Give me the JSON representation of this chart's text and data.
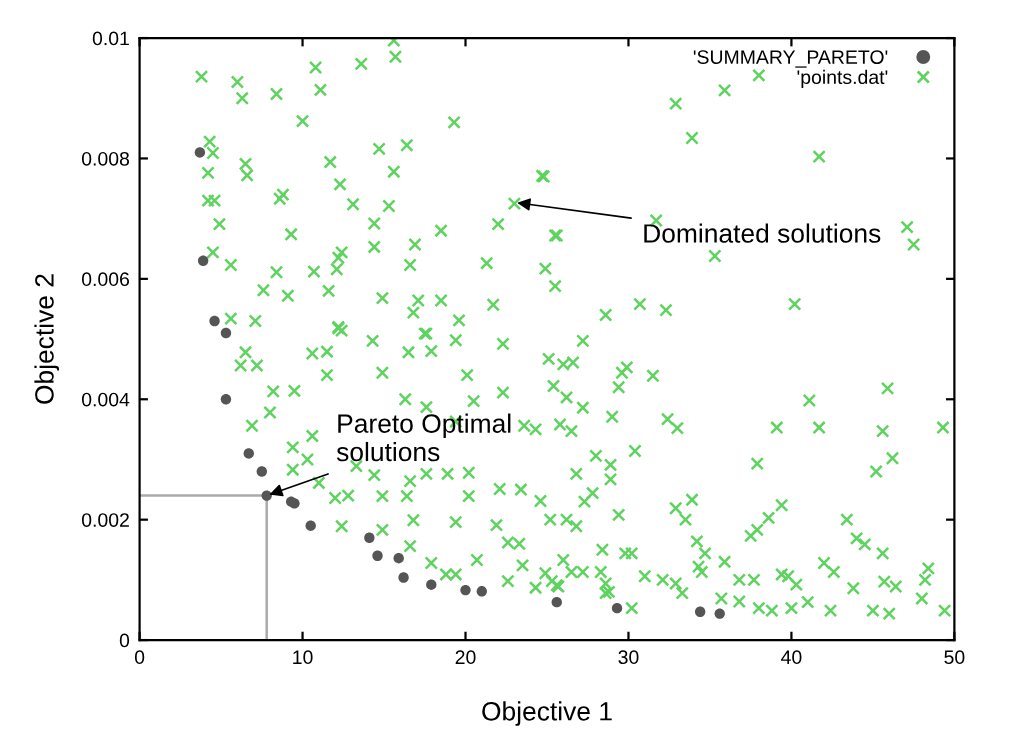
{
  "chart_data": {
    "type": "scatter",
    "xlabel": "Objective 1",
    "ylabel": "Objective 2",
    "xlim": [
      0,
      50
    ],
    "xticks": [
      0,
      10,
      20,
      30,
      40,
      50
    ],
    "ylim": [
      0,
      0.01
    ],
    "yticks": [
      0,
      0.002,
      0.004,
      0.006,
      0.008,
      0.01
    ],
    "grid": false,
    "legend": "top right",
    "series": [
      {
        "name": "'SUMMARY_PARETO'",
        "color": "#555555",
        "marker": "circle",
        "x": [
          3.7,
          3.9,
          4.6,
          5.3,
          5.3,
          6.7,
          7.5,
          7.8,
          9.3,
          9.5,
          10.5,
          14.1,
          14.6,
          15.9,
          16.2,
          17.9,
          20.0,
          21.0,
          25.6,
          29.3,
          34.4,
          35.6
        ],
        "values": [
          0.0081,
          0.0063,
          0.0053,
          0.0051,
          0.004,
          0.0031,
          0.0028,
          0.0024,
          0.0023,
          0.00227,
          0.0019,
          0.0017,
          0.0014,
          0.00136,
          0.00104,
          0.00092,
          0.00083,
          0.00081,
          0.00063,
          0.00053,
          0.00047,
          0.00044
        ]
      },
      {
        "name": "'points.dat'",
        "color": "#5fd35f",
        "marker": "cross",
        "x": [
          3.8,
          6.0,
          6.3,
          8.4,
          10.8,
          11.1,
          13.6,
          15.7,
          15.6,
          10.0,
          19.3,
          4.3,
          4.5,
          6.5,
          6.6,
          4.2,
          4.6,
          4.2,
          8.8,
          8.6,
          11.7,
          12.3,
          14.7,
          16.4,
          15.6,
          13.1,
          15.3,
          14.4,
          4.9,
          9.3,
          18.5,
          22.0,
          24.7,
          23.0,
          25.5,
          4.5,
          5.6,
          12.4,
          12.2,
          14.4,
          16.6,
          16.9,
          21.3,
          24.9,
          25.5,
          8.4,
          10.7,
          11.6,
          7.6,
          9.1,
          12.1,
          14.9,
          17.1,
          16.8,
          18.5,
          19.6,
          21.7,
          5.6,
          7.1,
          12.2,
          12.4,
          17.5,
          38.0,
          35.9,
          32.9,
          33.9,
          41.7,
          24.8,
          25.6,
          31.7,
          35.3,
          47.1,
          47.5,
          30.7,
          32.3,
          28.6,
          40.2,
          6.5,
          6.2,
          7.2,
          8.2,
          9.5,
          10.6,
          11.5,
          12.2,
          14.3,
          11.5,
          14.9,
          16.5,
          17.9,
          19.4,
          17.6,
          20.1,
          16.3,
          17.6,
          20.5,
          19.4,
          22.3,
          25.1,
          26.0,
          22.3,
          23.6,
          24.3,
          25.4,
          26.2,
          25.8,
          6.9,
          8.0,
          9.4,
          9.4,
          10.6,
          10.3,
          11.0,
          12.0,
          12.8,
          13.3,
          14.4,
          14.9,
          16.4,
          16.6,
          17.6,
          18.9,
          20.2,
          20.2,
          22.1,
          23.4,
          24.6,
          16.8,
          19.4,
          21.9,
          14.9,
          12.4,
          16.6,
          17.9,
          18.8,
          19.4,
          20.7,
          22.6,
          23.3,
          23.5,
          24.9,
          26.0,
          25.6,
          24.3,
          22.6,
          27.2,
          26.6,
          29.6,
          29.9,
          31.5,
          29.4,
          27.2,
          29.0,
          32.4,
          33.0,
          26.5,
          41.1,
          45.9,
          45.6,
          39.1,
          41.7,
          49.3,
          46.2,
          45.2,
          37.9,
          30.4,
          28.0,
          28.9,
          28.9,
          26.8,
          27.8,
          27.3,
          29.4,
          33.9,
          32.9,
          33.5,
          39.4,
          43.4,
          38.6,
          37.9,
          37.5,
          44.0,
          44.5,
          26.2,
          26.8,
          25.2,
          34.2,
          34.7,
          28.4,
          29.8,
          30.2,
          26.5,
          27.2,
          28.3,
          28.6,
          28.8,
          31.0,
          32.1,
          32.9,
          34.3,
          34.5,
          35.9,
          36.8,
          37.7,
          39.4,
          39.8,
          40.3,
          42.0,
          42.6,
          43.8,
          45.6,
          45.7,
          46.4,
          48.4,
          48.2,
          48.0,
          49.4,
          46.0,
          45.0,
          42.4,
          41.0,
          40.0,
          38.8,
          38.0,
          36.8,
          35.7,
          30.2,
          28.6,
          25.3,
          25.7,
          33.3
        ],
        "values": [
          0.00936,
          0.00927,
          0.009,
          0.00907,
          0.00951,
          0.00914,
          0.00957,
          0.00969,
          0.00996,
          0.00862,
          0.0086,
          0.00828,
          0.00809,
          0.00791,
          0.00772,
          0.00776,
          0.0073,
          0.0073,
          0.0074,
          0.00733,
          0.00794,
          0.00757,
          0.00816,
          0.00822,
          0.00778,
          0.00724,
          0.00721,
          0.00692,
          0.00691,
          0.00674,
          0.0068,
          0.00691,
          0.00771,
          0.00725,
          0.00672,
          0.00644,
          0.00623,
          0.00644,
          0.00635,
          0.00653,
          0.00623,
          0.00657,
          0.00626,
          0.00617,
          0.00588,
          0.00611,
          0.00612,
          0.0058,
          0.00581,
          0.00572,
          0.00616,
          0.00568,
          0.00564,
          0.00544,
          0.00564,
          0.00531,
          0.00557,
          0.00534,
          0.0053,
          0.0052,
          0.00514,
          0.00509,
          0.00938,
          0.00913,
          0.00891,
          0.00834,
          0.00803,
          0.0077,
          0.00672,
          0.00697,
          0.00638,
          0.00686,
          0.00657,
          0.00558,
          0.00548,
          0.0054,
          0.00558,
          0.00478,
          0.00456,
          0.00456,
          0.00413,
          0.00414,
          0.00476,
          0.00479,
          0.00518,
          0.00497,
          0.0044,
          0.00444,
          0.00478,
          0.0048,
          0.00498,
          0.00509,
          0.0044,
          0.004,
          0.00387,
          0.00397,
          0.00363,
          0.00492,
          0.00467,
          0.00458,
          0.00411,
          0.00356,
          0.0035,
          0.00422,
          0.00403,
          0.00358,
          0.00356,
          0.00378,
          0.0032,
          0.00283,
          0.00339,
          0.003,
          0.00261,
          0.00236,
          0.0024,
          0.00289,
          0.00274,
          0.00239,
          0.00239,
          0.00264,
          0.00276,
          0.00276,
          0.00278,
          0.00239,
          0.00251,
          0.0025,
          0.00231,
          0.00199,
          0.00196,
          0.00191,
          0.00183,
          0.00189,
          0.00156,
          0.00128,
          0.00109,
          0.00109,
          0.00133,
          0.00162,
          0.0016,
          0.00124,
          0.00111,
          0.00133,
          0.00091,
          0.00087,
          0.00098,
          0.00497,
          0.00461,
          0.00444,
          0.00453,
          0.00439,
          0.0042,
          0.00386,
          0.00371,
          0.00367,
          0.00352,
          0.00347,
          0.00398,
          0.00418,
          0.00347,
          0.00353,
          0.00353,
          0.00353,
          0.00302,
          0.0028,
          0.00293,
          0.00314,
          0.00306,
          0.00291,
          0.00267,
          0.00276,
          0.00244,
          0.0023,
          0.00208,
          0.00233,
          0.00219,
          0.002,
          0.00224,
          0.002,
          0.00203,
          0.00183,
          0.00173,
          0.00169,
          0.00159,
          0.002,
          0.00189,
          0.002,
          0.00164,
          0.00144,
          0.0015,
          0.00144,
          0.00144,
          0.00113,
          0.00113,
          0.00113,
          0.00094,
          0.0008,
          0.00106,
          0.001,
          0.00094,
          0.00122,
          0.00113,
          0.0013,
          0.001,
          0.001,
          0.00109,
          0.00106,
          0.00092,
          0.00128,
          0.00113,
          0.00086,
          0.00144,
          0.00097,
          0.00089,
          0.00119,
          0.001,
          0.00069,
          0.00049,
          0.00044,
          0.00049,
          0.00049,
          0.00063,
          0.00053,
          0.00049,
          0.00053,
          0.00064,
          0.00069,
          0.00053,
          0.00078,
          0.00098,
          0.00089,
          0.00078
        ]
      }
    ],
    "ref_lines": [
      {
        "axis": "x",
        "value": 7.8,
        "color": "#aaaaaa",
        "line_style": "solid"
      },
      {
        "axis": "y",
        "value": 0.0024,
        "color": "#aaaaaa",
        "line_style": "solid"
      }
    ],
    "annotations": [
      {
        "text": "Dominated solutions",
        "x": 23.0,
        "y": 0.00727
      },
      {
        "text": "Pareto Optimal\nsolutions",
        "x": 7.8,
        "y": 0.0024
      }
    ]
  }
}
